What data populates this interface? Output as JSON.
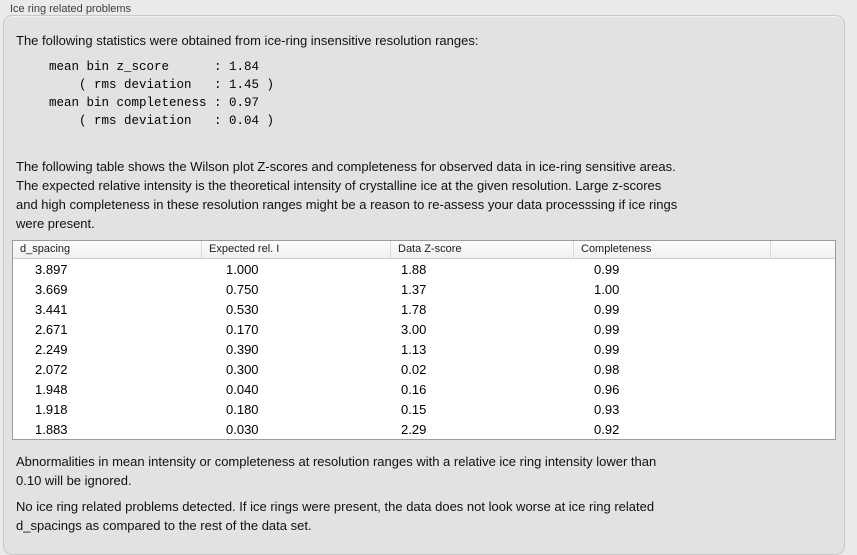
{
  "panel": {
    "title": "Ice ring related problems"
  },
  "intro_text": "The following statistics were obtained from ice-ring insensitive resolution ranges:",
  "stats_block": "mean bin z_score      : 1.84\n    ( rms deviation   : 1.45 )\nmean bin completeness : 0.97\n    ( rms deviation   : 0.04 )",
  "stats": {
    "mean_bin_z_score": "1.84",
    "z_score_rms_deviation": "1.45",
    "mean_bin_completeness": "0.97",
    "completeness_rms_deviation": "0.04"
  },
  "description": "The following table shows the Wilson plot Z-scores and completeness for observed data in ice-ring sensitive areas.\nThe expected relative intensity is the theoretical intensity of crystalline ice at the given resolution. Large z-scores\nand high completeness in these resolution ranges might be a reason to re-assess your data processsing if ice rings\nwere present.",
  "table": {
    "columns": [
      "d_spacing",
      "Expected rel. I",
      "Data Z-score",
      "Completeness",
      ""
    ],
    "rows": [
      [
        "3.897",
        "1.000",
        "1.88",
        "0.99"
      ],
      [
        "3.669",
        "0.750",
        "1.37",
        "1.00"
      ],
      [
        "3.441",
        "0.530",
        "1.78",
        "0.99"
      ],
      [
        "2.671",
        "0.170",
        "3.00",
        "0.99"
      ],
      [
        "2.249",
        "0.390",
        "1.13",
        "0.99"
      ],
      [
        "2.072",
        "0.300",
        "0.02",
        "0.98"
      ],
      [
        "1.948",
        "0.040",
        "0.16",
        "0.96"
      ],
      [
        "1.918",
        "0.180",
        "0.15",
        "0.93"
      ],
      [
        "1.883",
        "0.030",
        "2.29",
        "0.92"
      ]
    ]
  },
  "ignore_note": "Abnormalities in mean intensity or completeness at resolution ranges with a relative ice ring intensity lower than\n0.10 will be ignored.",
  "conclusion": "No ice ring related problems detected. If ice rings were present, the data does not look worse at ice ring related\nd_spacings as compared to the rest of the data set."
}
